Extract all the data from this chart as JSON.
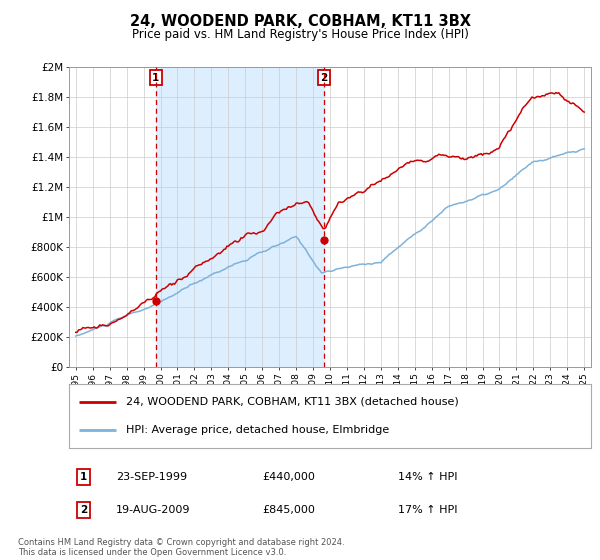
{
  "title": "24, WOODEND PARK, COBHAM, KT11 3BX",
  "subtitle": "Price paid vs. HM Land Registry's House Price Index (HPI)",
  "legend_line1": "24, WOODEND PARK, COBHAM, KT11 3BX (detached house)",
  "legend_line2": "HPI: Average price, detached house, Elmbridge",
  "annotation1_label": "1",
  "annotation1_date": "23-SEP-1999",
  "annotation1_price": "£440,000",
  "annotation1_hpi": "14% ↑ HPI",
  "annotation1_year": 1999.72,
  "annotation1_value": 440000,
  "annotation2_label": "2",
  "annotation2_date": "19-AUG-2009",
  "annotation2_price": "£845,000",
  "annotation2_hpi": "17% ↑ HPI",
  "annotation2_year": 2009.63,
  "annotation2_value": 845000,
  "shade_start": 1999.72,
  "shade_end": 2009.63,
  "price_line_color": "#cc0000",
  "hpi_line_color": "#7fb2d9",
  "vline_color": "#cc0000",
  "shade_color": "#ddeeff",
  "background_color": "#ffffff",
  "grid_color": "#cccccc",
  "footer_text": "Contains HM Land Registry data © Crown copyright and database right 2024.\nThis data is licensed under the Open Government Licence v3.0.",
  "ylim": [
    0,
    2000000
  ],
  "xlim_start": 1994.6,
  "xlim_end": 2025.4,
  "yticks": [
    0,
    200000,
    400000,
    600000,
    800000,
    1000000,
    1200000,
    1400000,
    1600000,
    1800000,
    2000000
  ],
  "ytick_labels": [
    "£0",
    "£200K",
    "£400K",
    "£600K",
    "£800K",
    "£1M",
    "£1.2M",
    "£1.4M",
    "£1.6M",
    "£1.8M",
    "£2M"
  ],
  "xticks": [
    1995,
    1996,
    1997,
    1998,
    1999,
    2000,
    2001,
    2002,
    2003,
    2004,
    2005,
    2006,
    2007,
    2008,
    2009,
    2010,
    2011,
    2012,
    2013,
    2014,
    2015,
    2016,
    2017,
    2018,
    2019,
    2020,
    2021,
    2022,
    2023,
    2024,
    2025
  ]
}
